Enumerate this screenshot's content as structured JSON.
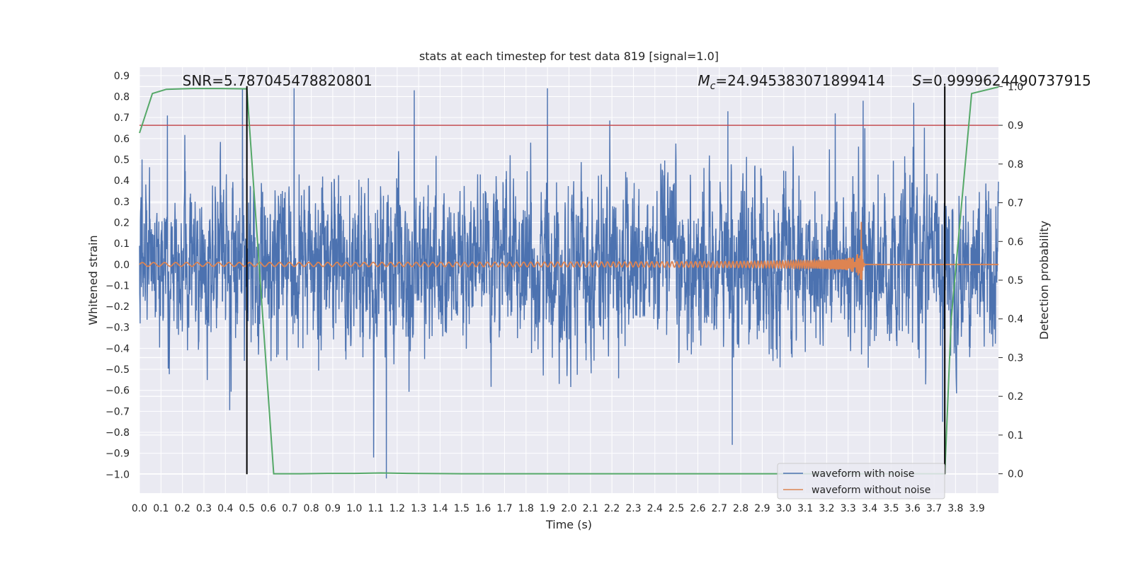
{
  "chart_data": {
    "type": "line",
    "title": "stats at each timestep for test data 819 [signal=1.0]",
    "xlabel": "Time (s)",
    "ylabel": "Whitened strain",
    "y2label": "Detection probability",
    "xlim": [
      0.0,
      4.0
    ],
    "ylim": [
      -1.09,
      0.94
    ],
    "y2lim": [
      -0.05,
      1.05
    ],
    "x_ticks": [
      0.0,
      0.1,
      0.2,
      0.3,
      0.4,
      0.5,
      0.6,
      0.7,
      0.8,
      0.9,
      1.0,
      1.1,
      1.2,
      1.3,
      1.4,
      1.5,
      1.6,
      1.7,
      1.8,
      1.9,
      2.0,
      2.1,
      2.2,
      2.3,
      2.4,
      2.5,
      2.6,
      2.7,
      2.8,
      2.9,
      3.0,
      3.1,
      3.2,
      3.3,
      3.4,
      3.5,
      3.6,
      3.7,
      3.8,
      3.9
    ],
    "y_ticks": [
      0.9,
      0.8,
      0.7,
      0.6,
      0.5,
      0.4,
      0.3,
      0.2,
      0.1,
      0.0,
      -0.1,
      -0.2,
      -0.3,
      -0.4,
      -0.5,
      -0.6,
      -0.7,
      -0.8,
      -0.9,
      -1.0
    ],
    "y2_ticks": [
      1.0,
      0.9,
      0.8,
      0.7,
      0.6,
      0.5,
      0.4,
      0.3,
      0.2,
      0.1,
      0.0
    ],
    "grid": true,
    "legend_placement": "bottom-right",
    "annotations": {
      "snr": "SNR=5.787045478820801",
      "mc_symbol": "M",
      "mc_sub": "c",
      "mc_value": "=24.945383071899414",
      "s_symbol": "S",
      "s_value": "=0.9999624490737915"
    },
    "series": [
      {
        "name": "waveform with noise",
        "color": "#4c72b0",
        "generator": "noise",
        "noise_rms": 0.19,
        "notable_spikes": [
          {
            "x": 0.48,
            "y": 0.84
          },
          {
            "x": 0.72,
            "y": 0.84
          },
          {
            "x": 1.28,
            "y": 0.83
          },
          {
            "x": 1.9,
            "y": 0.84
          },
          {
            "x": 3.37,
            "y": 0.78
          },
          {
            "x": 1.15,
            "y": -1.02
          },
          {
            "x": 1.09,
            "y": -0.92
          },
          {
            "x": 2.76,
            "y": -0.86
          },
          {
            "x": 3.74,
            "y": -0.75
          },
          {
            "x": 0.13,
            "y": 0.71
          },
          {
            "x": 2.74,
            "y": 0.73
          },
          {
            "x": 3.24,
            "y": 0.72
          }
        ]
      },
      {
        "name": "waveform without noise",
        "color": "#dd8452",
        "generator": "chirp",
        "merger_time": 3.36,
        "peak_amplitude": 0.27
      },
      {
        "name": "",
        "color": "#55a868",
        "axis": "secondary",
        "x": [
          0.0,
          0.06,
          0.125,
          0.25,
          0.375,
          0.5,
          0.625,
          0.75,
          0.875,
          1.0,
          1.125,
          1.25,
          1.5,
          2.0,
          2.5,
          3.0,
          3.5,
          3.75,
          3.78,
          3.875,
          4.0
        ],
        "y": [
          0.88,
          0.982,
          0.993,
          0.995,
          0.995,
          0.994,
          0.0,
          0.0,
          0.001,
          0.001,
          0.002,
          0.001,
          0.0,
          0.0,
          0.0,
          0.0,
          0.0,
          0.0,
          0.4,
          0.982,
          0.999
        ]
      }
    ],
    "threshold": {
      "axis": "secondary",
      "y": 0.9,
      "color": "#c44e52"
    },
    "markers": [
      {
        "x": 0.5,
        "y_from": -1.0,
        "y_to": 0.85,
        "color": "#000000"
      },
      {
        "x": 3.75,
        "y_from": -1.0,
        "y_to": 0.85,
        "color": "#000000"
      }
    ]
  }
}
